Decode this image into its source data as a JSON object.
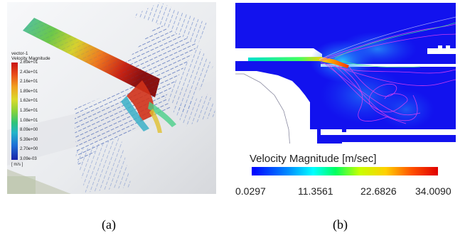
{
  "panel_a": {
    "legend": {
      "title_line1": "vector-1",
      "title_line2": "Velocity Magnitude",
      "ticks": [
        "2.69e+01",
        "2.43e+01",
        "2.16e+01",
        "1.89e+01",
        "1.62e+01",
        "1.35e+01",
        "1.08e+01",
        "8.09e+00",
        "5.39e+00",
        "2.70e+00",
        "3.09e-03"
      ],
      "unit": "[ m/s ]"
    },
    "caption": "(a)"
  },
  "panel_b": {
    "colorbar": {
      "title": "Velocity Magnitude [m/sec]",
      "ticks": [
        "0.0297",
        "11.3561",
        "22.6826",
        "34.0090"
      ]
    },
    "caption": "(b)"
  }
}
